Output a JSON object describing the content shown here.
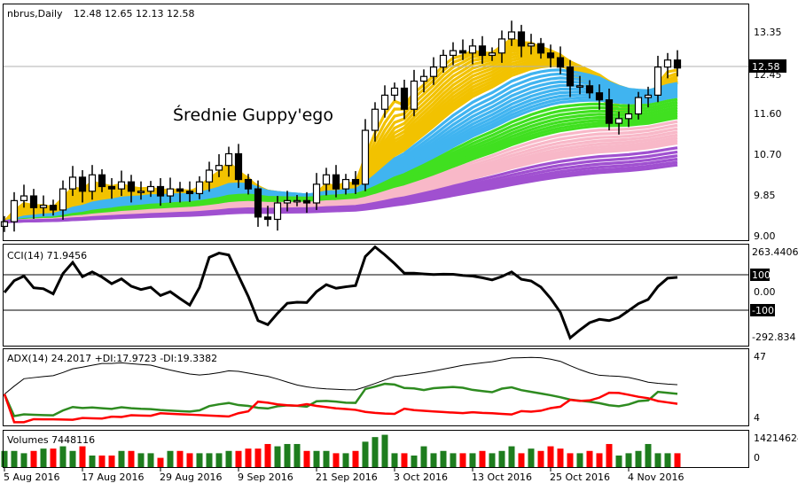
{
  "header": {
    "symbol": "nbrus,Daily",
    "ohlc": "12.48 12.65 12.13 12.58"
  },
  "annotation": "Średnie Guppy'ego",
  "current_price_label": "12.58",
  "colors": {
    "bull_volume": "#1e7d1e",
    "bear_volume": "#ff0000",
    "adx": "#000000",
    "plus_di": "#2e8b20",
    "minus_di": "#ff0000",
    "guppy": [
      "#f2c200",
      "#40b4f0",
      "#40e020",
      "#f8b8c8",
      "#a050d0"
    ]
  },
  "chart_data": [
    {
      "type": "candlestick",
      "title": "nbrus,Daily",
      "price_ticks": [
        "13.35",
        "12.45",
        "11.60",
        "10.70",
        "9.85",
        "9.00"
      ],
      "ylim": [
        9.0,
        13.35
      ],
      "x_labels": [
        "5 Aug 2016",
        "17 Aug 2016",
        "29 Aug 2016",
        "9 Sep 2016",
        "21 Sep 2016",
        "3 Oct 2016",
        "13 Oct 2016",
        "25 Oct 2016",
        "4 Nov 2016"
      ],
      "close": [
        9.3,
        9.75,
        9.85,
        9.6,
        9.65,
        9.55,
        10.0,
        10.25,
        9.95,
        10.3,
        10.05,
        10.0,
        10.15,
        9.95,
        9.95,
        10.05,
        9.85,
        10.0,
        9.95,
        9.9,
        10.15,
        10.4,
        10.5,
        10.75,
        10.2,
        10.0,
        9.4,
        9.35,
        9.7,
        9.75,
        9.75,
        9.7,
        10.1,
        10.3,
        10.0,
        10.2,
        10.1,
        11.25,
        11.7,
        12.0,
        12.15,
        11.7,
        12.3,
        12.4,
        12.6,
        12.85,
        12.95,
        12.9,
        13.05,
        12.85,
        12.9,
        13.2,
        13.35,
        13.05,
        13.1,
        12.9,
        12.8,
        12.6,
        12.2,
        12.2,
        12.05,
        11.9,
        11.4,
        11.5,
        11.6,
        11.95,
        12.0,
        12.6,
        12.75,
        12.58
      ],
      "guppy_periods": [
        [
          3,
          4,
          5,
          6,
          7,
          8,
          9,
          10,
          11,
          12,
          13,
          14,
          15,
          16
        ],
        [
          18,
          20,
          22,
          24,
          26,
          28,
          30,
          32,
          34,
          36
        ],
        [
          39,
          42,
          45,
          48,
          51,
          54,
          57,
          60
        ],
        [
          65,
          70,
          75,
          80,
          85,
          90,
          95,
          100
        ],
        [
          110,
          120,
          130,
          140,
          150,
          160
        ]
      ]
    },
    {
      "type": "line",
      "title": "CCI(14) 71.9456",
      "ticks": [
        "263.4406",
        "100",
        "0.00",
        "-100",
        "-292.834"
      ],
      "ylim": [
        -292.834,
        263.4406
      ],
      "levels": [
        100,
        -100
      ]
    },
    {
      "type": "line",
      "title": "ADX(14) 24.2017 +DI:17.9723 -DI:19.3382",
      "ticks": [
        "47",
        "4"
      ],
      "ylim": [
        4,
        47
      ],
      "series": [
        "ADX",
        "+DI",
        "-DI"
      ]
    },
    {
      "type": "bar",
      "title": "Volumes 7448116",
      "ticks": [
        "14214624",
        "0"
      ],
      "ylim": [
        0,
        14214624
      ],
      "values_millions": [
        7,
        7,
        6,
        7,
        8,
        8,
        9,
        7,
        9,
        5,
        5,
        5,
        7,
        7,
        6,
        6,
        4,
        7,
        7,
        6,
        6,
        6,
        6,
        7,
        7,
        8,
        8,
        10,
        9,
        10,
        10,
        7,
        7,
        7,
        6,
        6,
        7,
        11,
        13,
        14,
        6,
        6,
        5,
        9,
        6,
        7,
        6,
        6,
        6,
        7,
        6,
        7,
        9,
        6,
        8,
        7,
        9,
        8,
        6,
        6,
        7,
        6,
        10,
        5,
        6,
        7,
        10,
        6,
        6,
        6
      ]
    }
  ]
}
